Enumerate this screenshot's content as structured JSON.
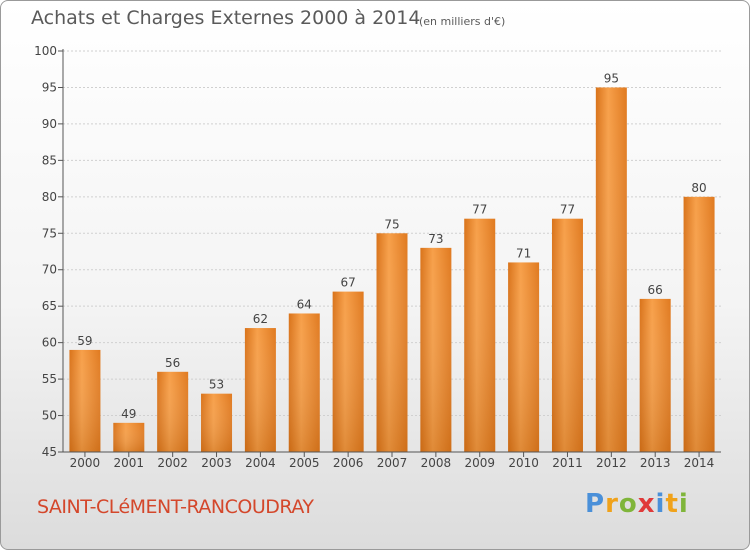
{
  "header": {
    "title": "Achats et Charges Externes 2000 à 2014",
    "subtitle": "(en milliers d'€)"
  },
  "footer": {
    "commune": "SAINT-CLéMENT-RANCOUDRAY",
    "brand_letters": [
      "P",
      "r",
      "o",
      "x",
      "i",
      "t",
      "i"
    ]
  },
  "colors": {
    "bar": "#f08a24",
    "bar_dark": "#d06810",
    "grid": "#d0d0d0",
    "commune": "#d4472b"
  },
  "chart_data": {
    "type": "bar",
    "title": "Achats et Charges Externes 2000 à 2014",
    "subtitle": "(en milliers d'€)",
    "categories": [
      "2000",
      "2001",
      "2002",
      "2003",
      "2004",
      "2005",
      "2006",
      "2007",
      "2008",
      "2009",
      "2010",
      "2011",
      "2012",
      "2013",
      "2014"
    ],
    "values": [
      59,
      49,
      56,
      53,
      62,
      64,
      67,
      75,
      73,
      77,
      71,
      77,
      95,
      66,
      80
    ],
    "ylim": [
      45,
      100
    ],
    "yticks": [
      45,
      50,
      55,
      60,
      65,
      70,
      75,
      80,
      85,
      90,
      95,
      100
    ],
    "grid": true
  }
}
